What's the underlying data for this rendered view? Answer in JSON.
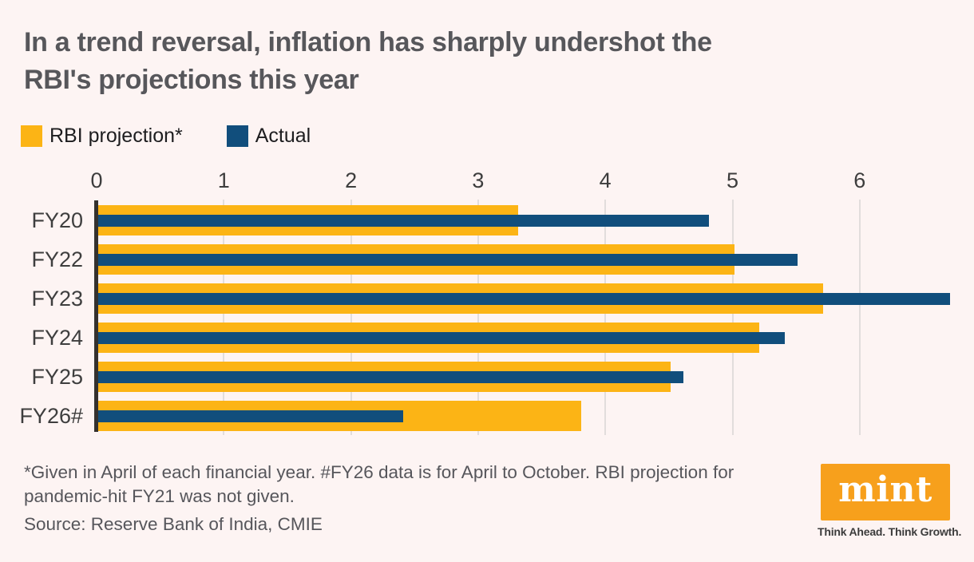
{
  "title_lines": [
    "In a trend reversal, inflation has sharply undershot the",
    "RBI's projections this year"
  ],
  "legend": {
    "projection_label": "RBI projection*",
    "actual_label": "Actual"
  },
  "chart_data": {
    "type": "bar",
    "orientation": "horizontal",
    "title": "In a trend reversal, inflation has sharply undershot the RBI's projections this year",
    "categories": [
      "FY20",
      "FY22",
      "FY23",
      "FY24",
      "FY25",
      "FY26#"
    ],
    "series": [
      {
        "name": "RBI projection*",
        "color": "#FCB415",
        "values": [
          3.3,
          5.0,
          5.7,
          5.2,
          4.5,
          3.8
        ]
      },
      {
        "name": "Actual",
        "color": "#114E7C",
        "values": [
          4.8,
          5.5,
          6.7,
          5.4,
          4.6,
          2.4
        ]
      }
    ],
    "x_ticks": [
      0,
      1,
      2,
      3,
      4,
      5,
      6
    ],
    "xlim": [
      0,
      6.76
    ],
    "grid": "vertical",
    "legend_position": "top-left",
    "xlabel": "",
    "ylabel": ""
  },
  "footnote_lines": [
    "*Given in April of each financial year. #FY26 data is for April to October. RBI projection for",
    "pandemic-hit FY21 was not given."
  ],
  "source": "Source: Reserve Bank of India, CMIE",
  "logo": {
    "text": "mint",
    "tagline": "Think Ahead. Think Growth."
  },
  "colors": {
    "background": "#FDF4F3",
    "bar_projection": "#FCB415",
    "bar_actual": "#114E7C",
    "logo_orange": "#F7A01C",
    "title_text": "#57575B",
    "axis_line": "#34312E",
    "gridline": "#E2DDDC"
  }
}
